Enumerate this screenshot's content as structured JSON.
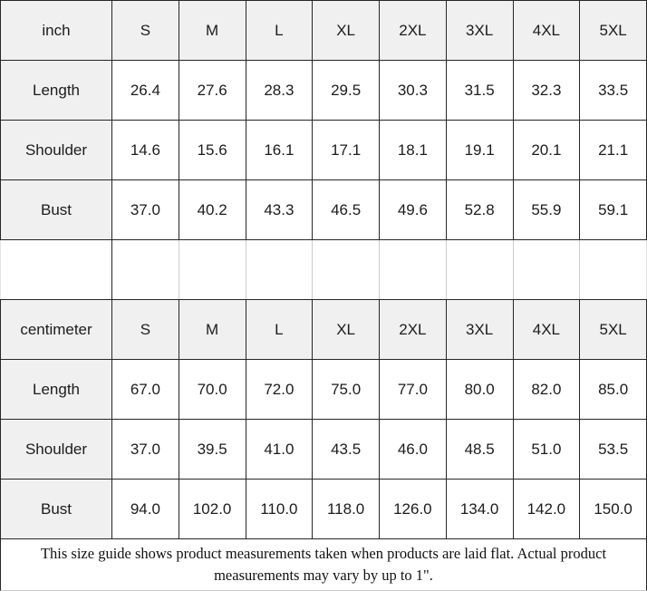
{
  "colors": {
    "header_bg": "#f0f0f0",
    "border_dark": "#262626",
    "border_light": "#cccccc",
    "text": "#1c1c1c",
    "background": "#ffffff"
  },
  "chart_data": [
    {
      "type": "table",
      "unit_label": "inch",
      "categories": [
        "S",
        "M",
        "L",
        "XL",
        "2XL",
        "3XL",
        "4XL",
        "5XL"
      ],
      "rows": [
        {
          "label": "Length",
          "values": [
            "26.4",
            "27.6",
            "28.3",
            "29.5",
            "30.3",
            "31.5",
            "32.3",
            "33.5"
          ]
        },
        {
          "label": "Shoulder",
          "values": [
            "14.6",
            "15.6",
            "16.1",
            "17.1",
            "18.1",
            "19.1",
            "20.1",
            "21.1"
          ]
        },
        {
          "label": "Bust",
          "values": [
            "37.0",
            "40.2",
            "43.3",
            "46.5",
            "49.6",
            "52.8",
            "55.9",
            "59.1"
          ]
        }
      ]
    },
    {
      "type": "table",
      "unit_label": "centimeter",
      "categories": [
        "S",
        "M",
        "L",
        "XL",
        "2XL",
        "3XL",
        "4XL",
        "5XL"
      ],
      "rows": [
        {
          "label": "Length",
          "values": [
            "67.0",
            "70.0",
            "72.0",
            "75.0",
            "77.0",
            "80.0",
            "82.0",
            "85.0"
          ]
        },
        {
          "label": "Shoulder",
          "values": [
            "37.0",
            "39.5",
            "41.0",
            "43.5",
            "46.0",
            "48.5",
            "51.0",
            "53.5"
          ]
        },
        {
          "label": "Bust",
          "values": [
            "94.0",
            "102.0",
            "110.0",
            "118.0",
            "126.0",
            "134.0",
            "142.0",
            "150.0"
          ]
        }
      ]
    }
  ],
  "footer": {
    "text": "This size guide shows product measurements taken when products are laid flat. Actual product measurements may vary by up to 1\"."
  }
}
